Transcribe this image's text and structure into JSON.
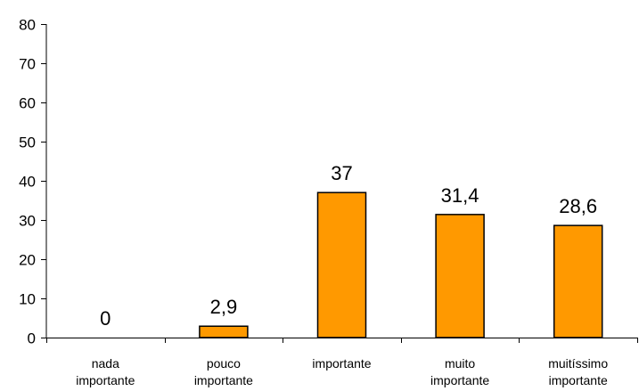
{
  "chart_data": {
    "type": "bar",
    "categories": [
      [
        "nada",
        "importante"
      ],
      [
        "pouco",
        "importante"
      ],
      [
        "importante"
      ],
      [
        "muito",
        "importante"
      ],
      [
        "muitíssimo",
        "importante"
      ]
    ],
    "values": [
      0,
      2.9,
      37,
      31.4,
      28.6
    ],
    "value_labels": [
      "0",
      "2,9",
      "37",
      "31,4",
      "28,6"
    ],
    "title": "",
    "xlabel": "",
    "ylabel": "",
    "ylim": [
      0,
      80
    ],
    "yticks": [
      0,
      10,
      20,
      30,
      40,
      50,
      60,
      70,
      80
    ],
    "grid": false,
    "legend": "none",
    "colors": {
      "bar_fill": "#FF9900",
      "bar_stroke": "#000000",
      "axis": "#000000"
    }
  }
}
